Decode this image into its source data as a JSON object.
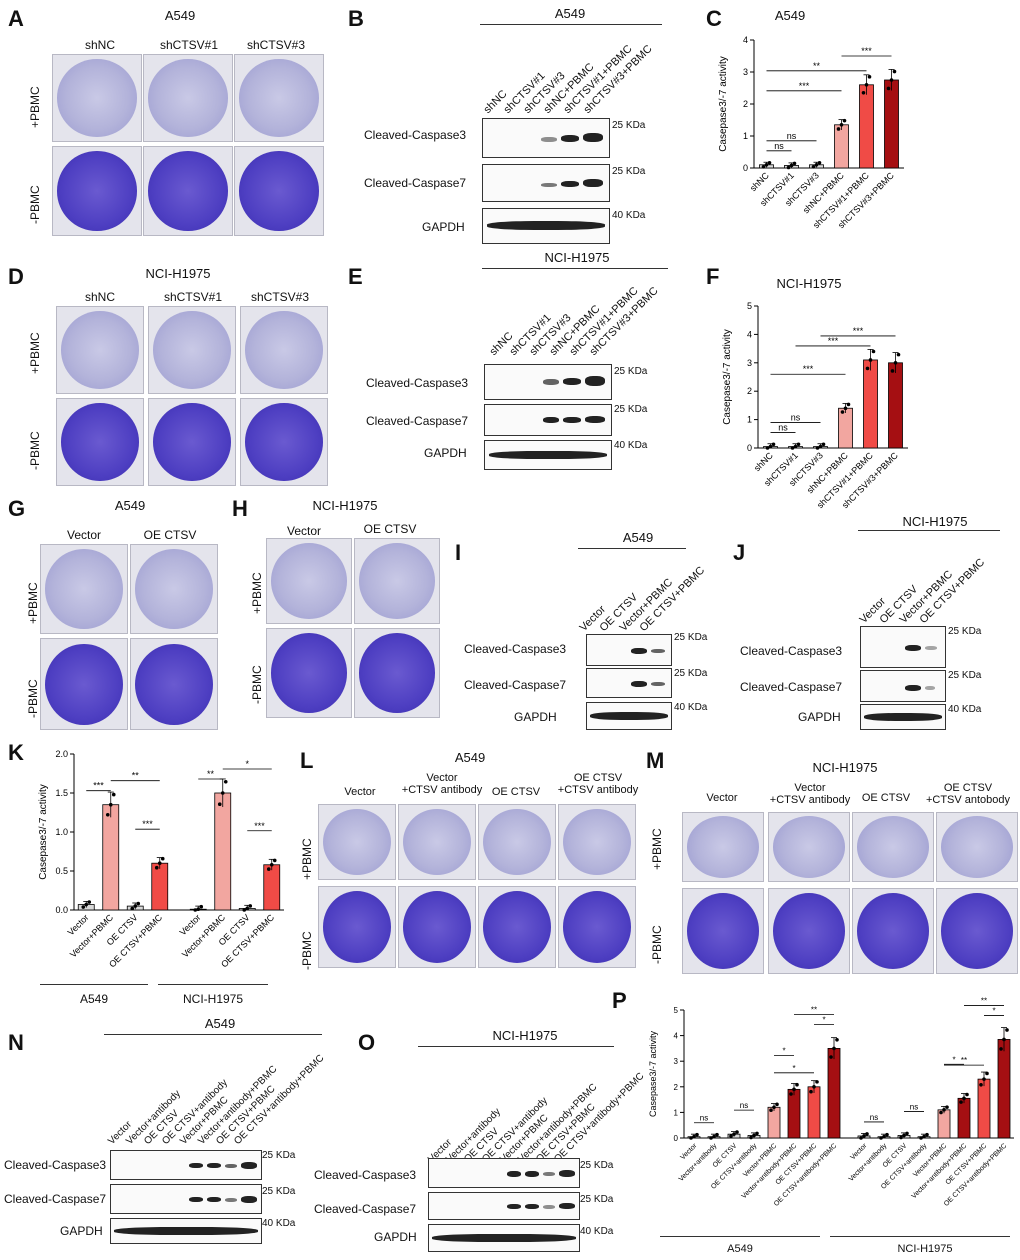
{
  "panels": {
    "A": {
      "letter": "A",
      "title": "A549",
      "cols": [
        "shNC",
        "shCTSV#1",
        "shCTSV#3"
      ],
      "rows": [
        "+PBMC",
        "-PBMC"
      ]
    },
    "B": {
      "letter": "B",
      "title": "A549",
      "lanes": [
        "shNC",
        "shCTSV#1",
        "shCTSV#3",
        "shNC+PBMC",
        "shCTSV#1+PBMC",
        "shCTSV#3+PBMC"
      ],
      "blots": [
        "Cleaved-Caspase3",
        "Cleaved-Caspase7",
        "GAPDH"
      ],
      "kda": [
        "25 KDa",
        "25 KDa",
        "40 KDa"
      ]
    },
    "C": {
      "letter": "C",
      "title": "A549"
    },
    "D": {
      "letter": "D",
      "title": "NCI-H1975",
      "cols": [
        "shNC",
        "shCTSV#1",
        "shCTSV#3"
      ],
      "rows": [
        "+PBMC",
        "-PBMC"
      ]
    },
    "E": {
      "letter": "E",
      "title": "NCI-H1975",
      "lanes": [
        "shNC",
        "shCTSV#1",
        "shCTSV#3",
        "shNC+PBMC",
        "shCTSV#1+PBMC",
        "shCTSV#3+PBMC"
      ],
      "blots": [
        "Cleaved-Caspase3",
        "Cleaved-Caspase7",
        "GAPDH"
      ],
      "kda": [
        "25 KDa",
        "25 KDa",
        "40 KDa"
      ]
    },
    "F": {
      "letter": "F",
      "title": "NCI-H1975"
    },
    "G": {
      "letter": "G",
      "title": "A549",
      "cols": [
        "Vector",
        "OE CTSV"
      ],
      "rows": [
        "+PBMC",
        "-PBMC"
      ]
    },
    "H": {
      "letter": "H",
      "title": "NCI-H1975",
      "cols": [
        "Vector",
        "OE CTSV"
      ],
      "rows": [
        "+PBMC",
        "-PBMC"
      ]
    },
    "I": {
      "letter": "I",
      "title": "A549",
      "lanes": [
        "Vector",
        "OE CTSV",
        "Vector+PBMC",
        "OE CTSV+PBMC"
      ],
      "blots": [
        "Cleaved-Caspase3",
        "Cleaved-Caspase7",
        "GAPDH"
      ],
      "kda": [
        "25 KDa",
        "25 KDa",
        "40 KDa"
      ]
    },
    "J": {
      "letter": "J",
      "title": "NCI-H1975",
      "lanes": [
        "Vector",
        "OE CTSV",
        "Vector+PBMC",
        "OE CTSV+PBMC"
      ],
      "blots": [
        "Cleaved-Caspase3",
        "Cleaved-Caspase7",
        "GAPDH"
      ],
      "kda": [
        "25 KDa",
        "25 KDa",
        "40 KDa"
      ]
    },
    "K": {
      "letter": "K",
      "groups": [
        "A549",
        "NCI-H1975"
      ]
    },
    "L": {
      "letter": "L",
      "title": "A549",
      "cols": [
        "Vector",
        "Vector\n+CTSV antibody",
        "OE CTSV",
        "OE CTSV\n+CTSV antibody"
      ],
      "rows": [
        "+PBMC",
        "-PBMC"
      ]
    },
    "M": {
      "letter": "M",
      "title": "NCI-H1975",
      "cols": [
        "Vector",
        "Vector\n+CTSV antibody",
        "OE CTSV",
        "OE CTSV\n+CTSV antobody"
      ],
      "rows": [
        "+PBMC",
        "-PBMC"
      ]
    },
    "N": {
      "letter": "N",
      "title": "A549",
      "lanes": [
        "Vector",
        "Vector+antibody",
        "OE CTSV",
        "OE CTSV+antibody",
        "Vector+PBMC",
        "Vector+antibody+PBMC",
        "OE CTSV+PBMC",
        "OE CTSV+antibody+PBMC"
      ],
      "blots": [
        "Cleaved-Caspase3",
        "Cleaved-Caspase7",
        "GAPDH"
      ],
      "kda": [
        "25 KDa",
        "25 KDa",
        "40 KDa"
      ]
    },
    "O": {
      "letter": "O",
      "title": "NCI-H1975",
      "lanes": [
        "Vector",
        "Vector+antibody",
        "OE CTSV",
        "OE CTSV+antibody",
        "Vector+PBMC",
        "Vector+antibody+PBMC",
        "OE CTSV+PBMC",
        "OE CTSV+antibody+PBMC"
      ],
      "blots": [
        "Cleaved-Caspase3",
        "Cleaved-Caspase7",
        "GAPDH"
      ],
      "kda": [
        "25 KDa",
        "25 KDa",
        "40 KDa"
      ]
    },
    "P": {
      "letter": "P",
      "groups": [
        "A549",
        "NCI-H1975"
      ]
    }
  },
  "colors": {
    "c1": "#f2a6a0",
    "c2": "#f04b46",
    "c3": "#a50f12",
    "gray": "#d9d9d9",
    "well_dark": "#4e3fc2",
    "well_light": "#b3b3da"
  },
  "chart_data": [
    {
      "panel": "C",
      "type": "bar",
      "title": "A549",
      "ylabel": "Casepase3/-7 activity",
      "ylim": [
        0,
        4
      ],
      "yticks": [
        0,
        1,
        2,
        3,
        4
      ],
      "categories": [
        "shNC",
        "shCTSV#1",
        "shCTSV#3",
        "shNC+PBMC",
        "shCTSV#1+PBMC",
        "shCTSV#3+PBMC"
      ],
      "values": [
        0.1,
        0.08,
        0.1,
        1.35,
        2.6,
        2.75
      ],
      "sig": [
        {
          "from": 0,
          "to": 1,
          "label": "ns"
        },
        {
          "from": 0,
          "to": 2,
          "label": "ns"
        },
        {
          "from": 0,
          "to": 3,
          "label": "***"
        },
        {
          "from": 0,
          "to": 4,
          "label": "**"
        },
        {
          "from": 3,
          "to": 5,
          "label": "***"
        }
      ]
    },
    {
      "panel": "F",
      "type": "bar",
      "title": "NCI-H1975",
      "ylabel": "Casepase3/-7 activity",
      "ylim": [
        0,
        5
      ],
      "yticks": [
        0,
        1,
        2,
        3,
        4,
        5
      ],
      "categories": [
        "shNC",
        "shCTSV#1",
        "shCTSV#3",
        "shNC+PBMC",
        "shCTSV#1+PBMC",
        "shCTSV#3+PBMC"
      ],
      "values": [
        0.05,
        0.05,
        0.05,
        1.4,
        3.1,
        3.0
      ],
      "sig": [
        {
          "from": 0,
          "to": 1,
          "label": "ns"
        },
        {
          "from": 0,
          "to": 2,
          "label": "ns"
        },
        {
          "from": 0,
          "to": 3,
          "label": "***"
        },
        {
          "from": 1,
          "to": 4,
          "label": "***"
        },
        {
          "from": 2,
          "to": 5,
          "label": "***"
        }
      ]
    },
    {
      "panel": "K",
      "type": "bar",
      "ylabel": "Casepase3/-7 activity",
      "ylim": [
        0,
        2.0
      ],
      "yticks": [
        0.0,
        0.5,
        1.0,
        1.5,
        2.0
      ],
      "categories": [
        "Vector",
        "Vector+PBMC",
        "OE CTSV",
        "OE CTSV+PBMC",
        "Vector",
        "Vector+PBMC",
        "OE CTSV",
        "OE CTSV+PBMC"
      ],
      "values": [
        0.07,
        1.35,
        0.05,
        0.6,
        0.01,
        1.5,
        0.02,
        0.58
      ],
      "sig": [
        {
          "from": 0,
          "to": 1,
          "label": "***"
        },
        {
          "from": 1,
          "to": 3,
          "label": "**"
        },
        {
          "from": 2,
          "to": 3,
          "label": "***"
        },
        {
          "from": 4,
          "to": 5,
          "label": "**"
        },
        {
          "from": 5,
          "to": 7,
          "label": "*"
        },
        {
          "from": 6,
          "to": 7,
          "label": "***"
        }
      ]
    },
    {
      "panel": "P",
      "type": "bar",
      "ylabel": "Casepase3/-7 activity",
      "ylim": [
        0,
        5
      ],
      "yticks": [
        0,
        1,
        2,
        3,
        4,
        5
      ],
      "categories": [
        "Vector",
        "Vector+antibody",
        "OE CTSV",
        "OE CTSV+antibody",
        "Vector+PBMC",
        "Vector+antibody+PBMC",
        "OE CTSV+PBMC",
        "OE CTSV+antibody+PBMC",
        "Vector",
        "Vector+antibody",
        "OE CTSV",
        "OE CTSV+antibody",
        "Vector+PBMC",
        "Vector+antibody+PBMC",
        "OE CTSV+PBMC",
        "OE CTSV+antibody+PBMC"
      ],
      "values": [
        0.05,
        0.05,
        0.15,
        0.1,
        1.2,
        1.9,
        2.0,
        3.5,
        0.08,
        0.05,
        0.1,
        0.05,
        1.1,
        1.55,
        2.3,
        3.85
      ],
      "sig": [
        {
          "from": 0,
          "to": 1,
          "label": "ns"
        },
        {
          "from": 2,
          "to": 3,
          "label": "ns"
        },
        {
          "from": 4,
          "to": 5,
          "label": "*"
        },
        {
          "from": 4,
          "to": 6,
          "label": "*"
        },
        {
          "from": 6,
          "to": 7,
          "label": "*"
        },
        {
          "from": 5,
          "to": 7,
          "label": "**"
        },
        {
          "from": 8,
          "to": 9,
          "label": "ns"
        },
        {
          "from": 10,
          "to": 11,
          "label": "ns"
        },
        {
          "from": 12,
          "to": 13,
          "label": "*"
        },
        {
          "from": 12,
          "to": 14,
          "label": "**"
        },
        {
          "from": 14,
          "to": 15,
          "label": "*"
        },
        {
          "from": 13,
          "to": 15,
          "label": "**"
        }
      ]
    }
  ]
}
